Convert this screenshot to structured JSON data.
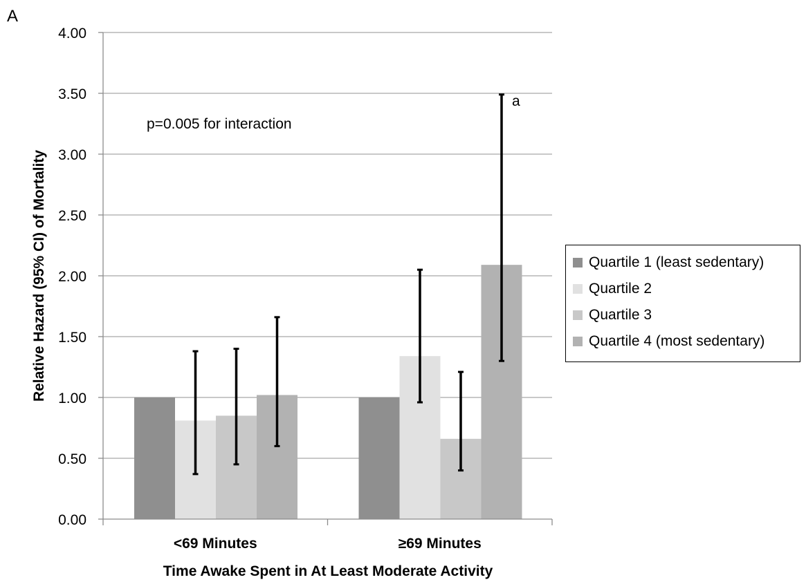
{
  "panel_label": "A",
  "annotation": "p=0.005 for interaction",
  "colors": {
    "series": [
      "#8f8f8f",
      "#e1e1e1",
      "#c8c8c8",
      "#b2b2b2"
    ],
    "grid": "#a6a6a6",
    "axis": "#8c8c8c",
    "error_bar": "#000000"
  },
  "chart_data": {
    "type": "bar",
    "xlabel": "Time Awake Spent in At Least Moderate Activity",
    "ylabel": "Relative Hazard (95% CI) of Mortality",
    "ylim": [
      0,
      4
    ],
    "yticks": [
      "0.00",
      "0.50",
      "1.00",
      "1.50",
      "2.00",
      "2.50",
      "3.00",
      "3.50",
      "4.00"
    ],
    "categories": [
      "<69 Minutes",
      "≥69 Minutes"
    ],
    "grid": true,
    "legend_position": "right",
    "series": [
      {
        "name": "Quartile 1 (least sedentary)",
        "values": [
          1.0,
          1.0
        ],
        "ci_low": [
          null,
          null
        ],
        "ci_high": [
          null,
          null
        ]
      },
      {
        "name": "Quartile 2",
        "values": [
          0.81,
          1.34
        ],
        "ci_low": [
          0.37,
          0.96
        ],
        "ci_high": [
          1.38,
          2.05
        ]
      },
      {
        "name": "Quartile 3",
        "values": [
          0.85,
          0.66
        ],
        "ci_low": [
          0.45,
          0.4
        ],
        "ci_high": [
          1.4,
          1.21
        ]
      },
      {
        "name": "Quartile 4 (most sedentary)",
        "values": [
          1.02,
          2.09
        ],
        "ci_low": [
          0.6,
          1.3
        ],
        "ci_high": [
          1.66,
          3.49
        ]
      }
    ],
    "annotations": [
      {
        "text": "a",
        "series": 3,
        "category": 1
      }
    ]
  }
}
